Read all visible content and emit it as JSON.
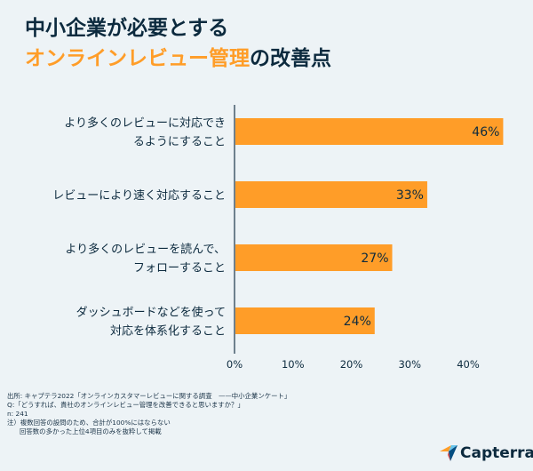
{
  "title": {
    "line1": "中小企業が必要とする",
    "line2_highlight": "オンラインレビュー管理",
    "line2_rest": "の改善点"
  },
  "chart_data": {
    "type": "bar",
    "orientation": "horizontal",
    "categories": [
      [
        "より多くのレビューに対応でき",
        "るようにすること"
      ],
      [
        "レビューにより速く対応すること"
      ],
      [
        "より多くのレビューを読んで、",
        "フォローすること"
      ],
      [
        "ダッシュボードなどを使って",
        "対応を体系化すること"
      ]
    ],
    "values": [
      46,
      33,
      27,
      24
    ],
    "value_labels": [
      "46%",
      "33%",
      "27%",
      "24%"
    ],
    "xlim": [
      0,
      47
    ],
    "xticks": [
      0,
      10,
      20,
      30,
      40
    ],
    "xtick_labels": [
      "0%",
      "10%",
      "20%",
      "30%",
      "40%"
    ],
    "bar_color": "#ff9d28"
  },
  "footer": {
    "source": "出所: キャプテラ2022「オンラインカスタマーレビューに関する調査　——中小企業ンケート」",
    "question": "Q:「どうすれば、貴社のオンラインレビュー管理を改善できると思いますか？」",
    "n": "n: 241",
    "note1": "注）複数回答の設問のため、合計が100%にはならない",
    "note2": "回答数の多かった上位4項目のみを抜粋して掲載"
  },
  "logo": {
    "text": "Capterra",
    "colors": [
      "#ff9d28",
      "#68c5ed",
      "#044d80",
      "#e54747"
    ]
  }
}
